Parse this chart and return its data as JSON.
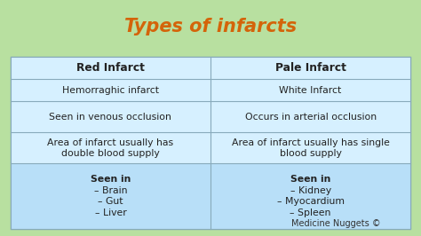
{
  "title": "Types of infarcts",
  "title_color": "#d4640a",
  "title_fontsize": 15,
  "title_box_bg": "#f0ede0",
  "title_box_edge": "#888870",
  "bg_color": "#b8e0a0",
  "table_bg": "#d6f0ff",
  "header_color": "#3a3a3a",
  "last_row_bg": "#b8dff8",
  "watermark": "Medicine Nuggets ©",
  "watermark_bg": "#f5f070",
  "col1_header": "Red Infarct",
  "col2_header": "Pale Infarct",
  "grid_color": "#88aabb",
  "text_color": "#222222",
  "text_fontsize": 7.8,
  "header_fontsize": 8.8,
  "rows": [
    [
      "Hemorraghic infarct",
      "White Infarct"
    ],
    [
      "Seen in venous occlusion",
      "Occurs in arterial occlusion"
    ],
    [
      "Area of infarct usually has\ndouble blood supply",
      "Area of infarct usually has single\nblood supply"
    ],
    [
      "Seen in\n– Brain\n– Gut\n– Liver",
      "Seen in\n– Kidney\n– Myocardium\n– Spleen"
    ]
  ]
}
